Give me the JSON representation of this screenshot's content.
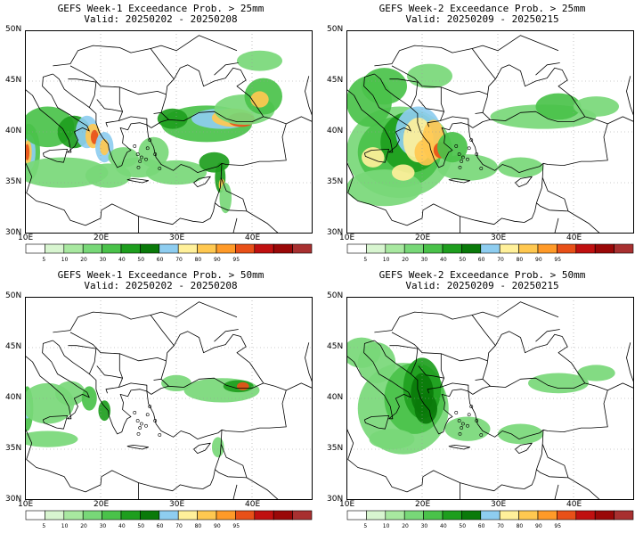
{
  "panels": [
    {
      "title": "GEFS Week-1 Exceedance Prob. > 25mm",
      "valid": "Valid: 20250202 - 20250208",
      "week": 1,
      "threshold_mm": 25,
      "intensity": "high"
    },
    {
      "title": "GEFS Week-2 Exceedance Prob. > 25mm",
      "valid": "Valid: 20250209 - 20250215",
      "week": 2,
      "threshold_mm": 25,
      "intensity": "high"
    },
    {
      "title": "GEFS Week-1 Exceedance Prob. > 50mm",
      "valid": "Valid: 20250202 - 20250208",
      "week": 1,
      "threshold_mm": 50,
      "intensity": "low"
    },
    {
      "title": "GEFS Week-2 Exceedance Prob. > 50mm",
      "valid": "Valid: 20250209 - 20250215",
      "week": 2,
      "threshold_mm": 50,
      "intensity": "medium"
    }
  ],
  "lat_labels": [
    "50N",
    "45N",
    "40N",
    "35N",
    "30N"
  ],
  "lon_labels": [
    "10E",
    "20E",
    "30E",
    "40E"
  ],
  "colorbar": {
    "labels": [
      "5",
      "10",
      "20",
      "30",
      "40",
      "50",
      "60",
      "70",
      "80",
      "90",
      "95"
    ],
    "colors": [
      "#ffffff",
      "#d8f5d0",
      "#a8e8a0",
      "#78d878",
      "#4ac24a",
      "#1e9e1e",
      "#0a7a0a",
      "#8ecdf0",
      "#fff09a",
      "#ffc850",
      "#ff9a28",
      "#e85018",
      "#c01010",
      "#9a0808",
      "#a83030"
    ]
  }
}
